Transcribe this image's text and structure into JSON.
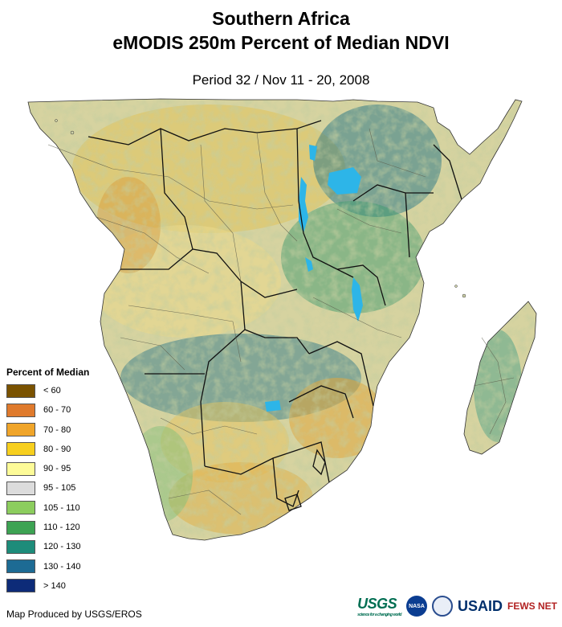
{
  "header": {
    "title_line1": "Southern Africa",
    "title_line2": "eMODIS 250m Percent of Median NDVI",
    "period": "Period 32 / Nov 11 - 20, 2008"
  },
  "legend": {
    "title": "Percent of Median",
    "classes": [
      {
        "label": "< 60",
        "color": "#7a5200"
      },
      {
        "label": "60 - 70",
        "color": "#df7a2c"
      },
      {
        "label": "70 - 80",
        "color": "#f0a52a"
      },
      {
        "label": "80 - 90",
        "color": "#f7cf1e"
      },
      {
        "label": "90 - 95",
        "color": "#fdfb98"
      },
      {
        "label": "95 - 105",
        "color": "#dcdcdc"
      },
      {
        "label": "105 - 110",
        "color": "#8ccd5e"
      },
      {
        "label": "110 - 120",
        "color": "#3da353"
      },
      {
        "label": "120 - 130",
        "color": "#1d8c7a"
      },
      {
        "label": "130 - 140",
        "color": "#1d6b94"
      },
      {
        "label": "> 140",
        "color": "#0d2b78"
      }
    ]
  },
  "colors": {
    "land_base": "#d9d3a3",
    "water": "#2db5e8",
    "border": "#111111"
  },
  "footer": {
    "credit": "Map Produced by USGS/EROS",
    "logos": {
      "usgs": "USGS",
      "usgs_tagline": "science for a changing world",
      "nasa": "NASA",
      "usaid": "USAID",
      "fews": "FEWS NET"
    }
  }
}
